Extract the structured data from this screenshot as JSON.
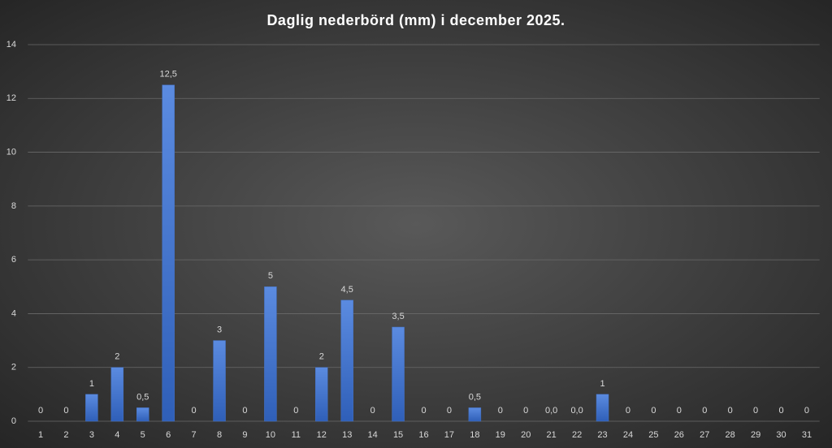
{
  "chart_data": {
    "type": "bar",
    "title": "Daglig nederbörd (mm) i december 2025.",
    "categories": [
      "1",
      "2",
      "3",
      "4",
      "5",
      "6",
      "7",
      "8",
      "9",
      "10",
      "11",
      "12",
      "13",
      "14",
      "15",
      "16",
      "17",
      "18",
      "19",
      "20",
      "21",
      "22",
      "23",
      "24",
      "25",
      "26",
      "27",
      "28",
      "29",
      "30",
      "31"
    ],
    "values": [
      0,
      0,
      1,
      2,
      0.5,
      12.5,
      0,
      3,
      0,
      5,
      0,
      2,
      4.5,
      0,
      3.5,
      0,
      0,
      0.5,
      0,
      0,
      0,
      0,
      1,
      0,
      0,
      0,
      0,
      0,
      0,
      0,
      0
    ],
    "value_labels": [
      "0",
      "0",
      "1",
      "2",
      "0,5",
      "12,5",
      "0",
      "3",
      "0",
      "5",
      "0",
      "2",
      "4,5",
      "0",
      "3,5",
      "0",
      "0",
      "0,5",
      "0",
      "0",
      "0,0",
      "0,0",
      "1",
      "0",
      "0",
      "0",
      "0",
      "0",
      "0",
      "0",
      "0"
    ],
    "color": "#4472c4",
    "ylim": [
      0,
      14
    ],
    "yticks": [
      0,
      2,
      4,
      6,
      8,
      10,
      12,
      14
    ],
    "grid": true
  }
}
